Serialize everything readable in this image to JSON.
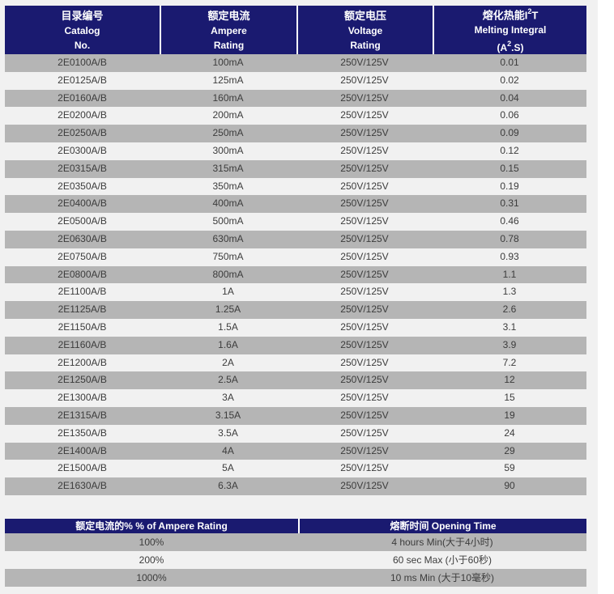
{
  "colors": {
    "header_background": "#1a1a70",
    "row_gray": "#b5b5b5",
    "row_light": "#f1f1f1",
    "header_text": "#ffffff",
    "cell_text": "#3c3c3c"
  },
  "main_table": {
    "headers": [
      {
        "cn": "目录编号",
        "en1": "Catalog",
        "en2": "No."
      },
      {
        "cn": "额定电流",
        "en1": "Ampere",
        "en2": "Rating"
      },
      {
        "cn": "额定电压",
        "en1": "Voltage",
        "en2": "Rating"
      },
      {
        "cn_pre": "熔化热能I",
        "cn_sup": "2",
        "cn_post": "T",
        "en1": "Melting Integral",
        "en2_pre": "(A",
        "en2_sup": "2",
        "en2_post": ".S)"
      }
    ],
    "rows": [
      [
        "2E0100A/B",
        "100mA",
        "250V/125V",
        "0.01"
      ],
      [
        "2E0125A/B",
        "125mA",
        "250V/125V",
        "0.02"
      ],
      [
        "2E0160A/B",
        "160mA",
        "250V/125V",
        "0.04"
      ],
      [
        "2E0200A/B",
        "200mA",
        "250V/125V",
        "0.06"
      ],
      [
        "2E0250A/B",
        "250mA",
        "250V/125V",
        "0.09"
      ],
      [
        "2E0300A/B",
        "300mA",
        "250V/125V",
        "0.12"
      ],
      [
        "2E0315A/B",
        "315mA",
        "250V/125V",
        "0.15"
      ],
      [
        "2E0350A/B",
        "350mA",
        "250V/125V",
        "0.19"
      ],
      [
        "2E0400A/B",
        "400mA",
        "250V/125V",
        "0.31"
      ],
      [
        "2E0500A/B",
        "500mA",
        "250V/125V",
        "0.46"
      ],
      [
        "2E0630A/B",
        "630mA",
        "250V/125V",
        "0.78"
      ],
      [
        "2E0750A/B",
        "750mA",
        "250V/125V",
        "0.93"
      ],
      [
        "2E0800A/B",
        "800mA",
        "250V/125V",
        "1.1"
      ],
      [
        "2E1100A/B",
        "1A",
        "250V/125V",
        "1.3"
      ],
      [
        "2E1125A/B",
        "1.25A",
        "250V/125V",
        "2.6"
      ],
      [
        "2E1150A/B",
        "1.5A",
        "250V/125V",
        "3.1"
      ],
      [
        "2E1160A/B",
        "1.6A",
        "250V/125V",
        "3.9"
      ],
      [
        "2E1200A/B",
        "2A",
        "250V/125V",
        "7.2"
      ],
      [
        "2E1250A/B",
        "2.5A",
        "250V/125V",
        "12"
      ],
      [
        "2E1300A/B",
        "3A",
        "250V/125V",
        "15"
      ],
      [
        "2E1315A/B",
        "3.15A",
        "250V/125V",
        "19"
      ],
      [
        "2E1350A/B",
        "3.5A",
        "250V/125V",
        "24"
      ],
      [
        "2E1400A/B",
        "4A",
        "250V/125V",
        "29"
      ],
      [
        "2E1500A/B",
        "5A",
        "250V/125V",
        "59"
      ],
      [
        "2E1630A/B",
        "6.3A",
        "250V/125V",
        "90"
      ]
    ]
  },
  "opening_time_table": {
    "headers": [
      "额定电流的%  % of Ampere Rating",
      "熔断时间 Opening Time"
    ],
    "rows": [
      [
        "100%",
        "4 hours Min(大于4小时)"
      ],
      [
        "200%",
        "60 sec Max (小于60秒)"
      ],
      [
        "1000%",
        "10 ms Min (大于10毫秒)"
      ]
    ]
  }
}
